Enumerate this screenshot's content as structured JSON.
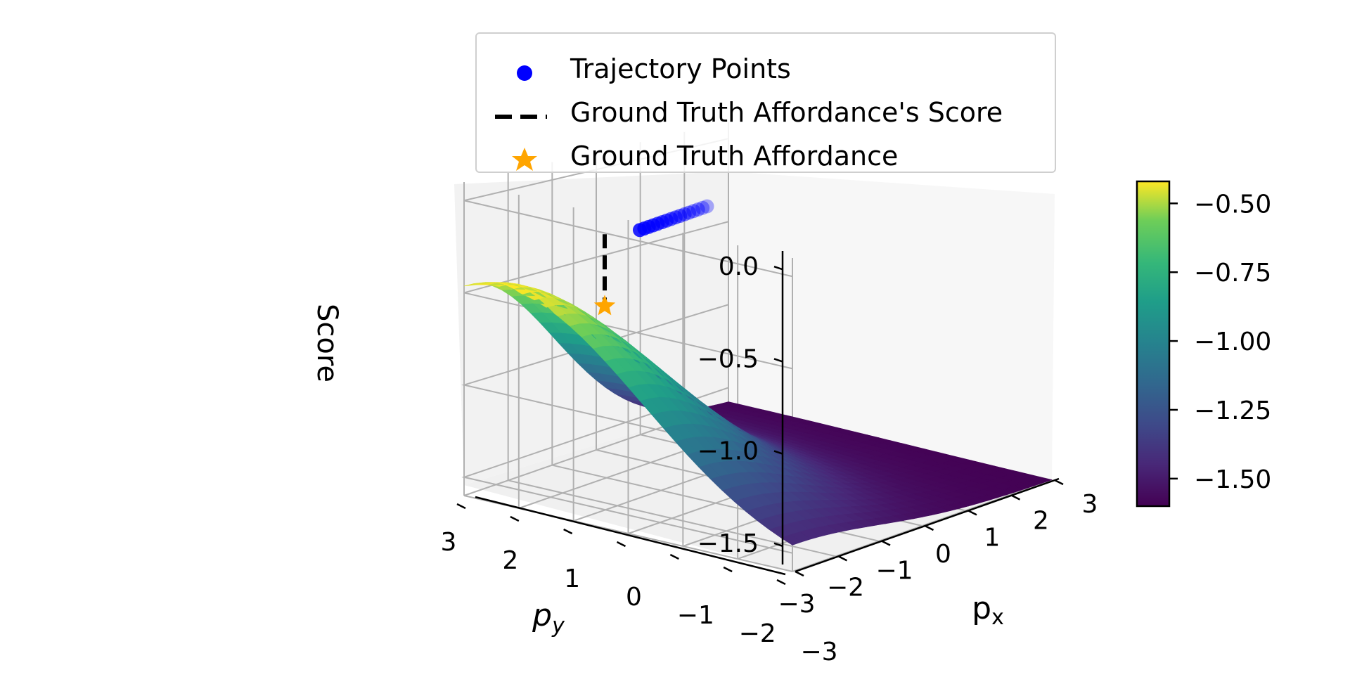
{
  "chart_data": {
    "type": "surface3d",
    "xlabel": "p_x",
    "ylabel": "p_y",
    "zlabel": "Score",
    "x_ticks": [
      "−3",
      "−2",
      "−1",
      "0",
      "1",
      "2",
      "3"
    ],
    "y_ticks": [
      "3",
      "2",
      "1",
      "0",
      "−1",
      "−2",
      "−3"
    ],
    "z_ticks": [
      "0.0",
      "−0.5",
      "−1.0",
      "−1.5"
    ],
    "xlim": [
      -3,
      3
    ],
    "ylim": [
      -3,
      3
    ],
    "zlim": [
      -1.6,
      0.1
    ],
    "colorbar": {
      "colormap": "viridis",
      "range": [
        -1.6,
        -0.42
      ],
      "ticks": [
        "−0.50",
        "−0.75",
        "−1.00",
        "−1.25",
        "−1.50"
      ],
      "tick_values": [
        -0.5,
        -0.75,
        -1.0,
        -1.25,
        -1.5
      ]
    },
    "series": [
      {
        "name": "Trajectory Points",
        "kind": "scatter",
        "color": "#0000ff",
        "z": 0.0,
        "points_x": [
          -3,
          -2.6,
          -2.2,
          -1.8,
          -1.4,
          -1.0,
          -0.6,
          -0.2,
          0.2,
          0.6,
          1.0,
          1.4,
          1.8,
          2.2,
          2.6,
          3.0
        ],
        "points_y": [
          3,
          2.6,
          2.2,
          1.8,
          1.4,
          1.0,
          0.6,
          0.2,
          -0.2,
          -0.6,
          -1.0,
          -1.4,
          -1.8,
          -2.2,
          -2.6,
          -3.0
        ]
      },
      {
        "name": "Ground Truth Affordance's Score",
        "kind": "line",
        "color": "#000000",
        "dash": "dashed",
        "x": -2.9,
        "y": 2.3,
        "z_from": 0.0,
        "z_to": -0.42
      },
      {
        "name": "Ground Truth Affordance",
        "kind": "marker",
        "marker": "star",
        "color": "#ffa500",
        "x": -2.9,
        "y": 2.3,
        "z": -0.42
      }
    ],
    "surface": {
      "max_score": -0.42,
      "min_score": -1.6,
      "description_axis": "score decreases with distance from affordance"
    },
    "grid": true,
    "legend_position": "top"
  }
}
